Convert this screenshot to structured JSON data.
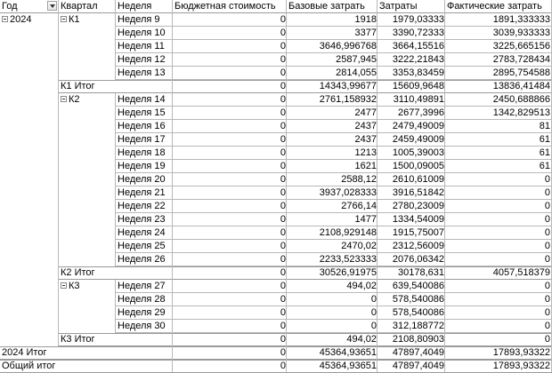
{
  "headers": {
    "year": "Год",
    "quarter": "Квартал",
    "week": "Неделя",
    "budget": "Бюджетная стоимость",
    "base": "Базовые затрать",
    "costs": "Затраты",
    "actual": "Фактические затрать"
  },
  "year_label": "2024",
  "rows": [
    {
      "type": "week",
      "quarter": "К1",
      "week": "Неделя 9",
      "budget": "0",
      "base": "1918",
      "costs": "1979,03333",
      "actual": "1891,333333"
    },
    {
      "type": "week",
      "week": "Неделя 10",
      "budget": "0",
      "base": "3377",
      "costs": "3390,72333",
      "actual": "3039,933333"
    },
    {
      "type": "week",
      "week": "Неделя 11",
      "budget": "0",
      "base": "3646,996768",
      "costs": "3664,15516",
      "actual": "3225,665156"
    },
    {
      "type": "week",
      "week": "Неделя 12",
      "budget": "0",
      "base": "2587,945",
      "costs": "3222,21843",
      "actual": "2783,728434"
    },
    {
      "type": "week",
      "week": "Неделя 13",
      "budget": "0",
      "base": "2814,055",
      "costs": "3353,83459",
      "actual": "2895,754588"
    },
    {
      "type": "qtotal",
      "label": "К1 Итог",
      "budget": "0",
      "base": "14343,99677",
      "costs": "15609,9648",
      "actual": "13836,41484"
    },
    {
      "type": "week",
      "quarter": "К2",
      "week": "Неделя 14",
      "budget": "0",
      "base": "2761,158932",
      "costs": "3110,49891",
      "actual": "2450,688866"
    },
    {
      "type": "week",
      "week": "Неделя 15",
      "budget": "0",
      "base": "2477",
      "costs": "2677,3996",
      "actual": "1342,829513"
    },
    {
      "type": "week",
      "week": "Неделя 16",
      "budget": "0",
      "base": "2437",
      "costs": "2479,49009",
      "actual": "81"
    },
    {
      "type": "week",
      "week": "Неделя 17",
      "budget": "0",
      "base": "2437",
      "costs": "2459,49009",
      "actual": "61"
    },
    {
      "type": "week",
      "week": "Неделя 18",
      "budget": "0",
      "base": "1213",
      "costs": "1005,39003",
      "actual": "61"
    },
    {
      "type": "week",
      "week": "Неделя 19",
      "budget": "0",
      "base": "1621",
      "costs": "1500,09005",
      "actual": "61"
    },
    {
      "type": "week",
      "week": "Неделя 20",
      "budget": "0",
      "base": "2588,12",
      "costs": "2610,61009",
      "actual": "0"
    },
    {
      "type": "week",
      "week": "Неделя 21",
      "budget": "0",
      "base": "3937,028333",
      "costs": "3916,51842",
      "actual": "0"
    },
    {
      "type": "week",
      "week": "Неделя 22",
      "budget": "0",
      "base": "2766,14",
      "costs": "2780,23009",
      "actual": "0"
    },
    {
      "type": "week",
      "week": "Неделя 23",
      "budget": "0",
      "base": "1477",
      "costs": "1334,54009",
      "actual": "0"
    },
    {
      "type": "week",
      "week": "Неделя 24",
      "budget": "0",
      "base": "2108,929148",
      "costs": "1915,75007",
      "actual": "0"
    },
    {
      "type": "week",
      "week": "Неделя 25",
      "budget": "0",
      "base": "2470,02",
      "costs": "2312,56009",
      "actual": "0"
    },
    {
      "type": "week",
      "week": "Неделя 26",
      "budget": "0",
      "base": "2233,523333",
      "costs": "2076,06342",
      "actual": "0"
    },
    {
      "type": "qtotal",
      "label": "К2 Итог",
      "budget": "0",
      "base": "30526,91975",
      "costs": "30178,631",
      "actual": "4057,518379"
    },
    {
      "type": "week",
      "quarter": "К3",
      "week": "Неделя 27",
      "budget": "0",
      "base": "494,02",
      "costs": "639,540086",
      "actual": "0"
    },
    {
      "type": "week",
      "week": "Неделя 28",
      "budget": "0",
      "base": "0",
      "costs": "578,540086",
      "actual": "0"
    },
    {
      "type": "week",
      "week": "Неделя 29",
      "budget": "0",
      "base": "0",
      "costs": "578,540086",
      "actual": "0"
    },
    {
      "type": "week",
      "week": "Неделя 30",
      "budget": "0",
      "base": "0",
      "costs": "312,188772",
      "actual": "0"
    },
    {
      "type": "qtotal",
      "label": "К3 Итог",
      "budget": "0",
      "base": "494,02",
      "costs": "2108,80903",
      "actual": "0"
    },
    {
      "type": "ytotal",
      "label": "2024 Итог",
      "budget": "0",
      "base": "45364,93651",
      "costs": "47897,4049",
      "actual": "17893,93322"
    },
    {
      "type": "gtotal",
      "label": "Общий итог",
      "budget": "0",
      "base": "45364,93651",
      "costs": "47897,4049",
      "actual": "17893,93322"
    }
  ]
}
